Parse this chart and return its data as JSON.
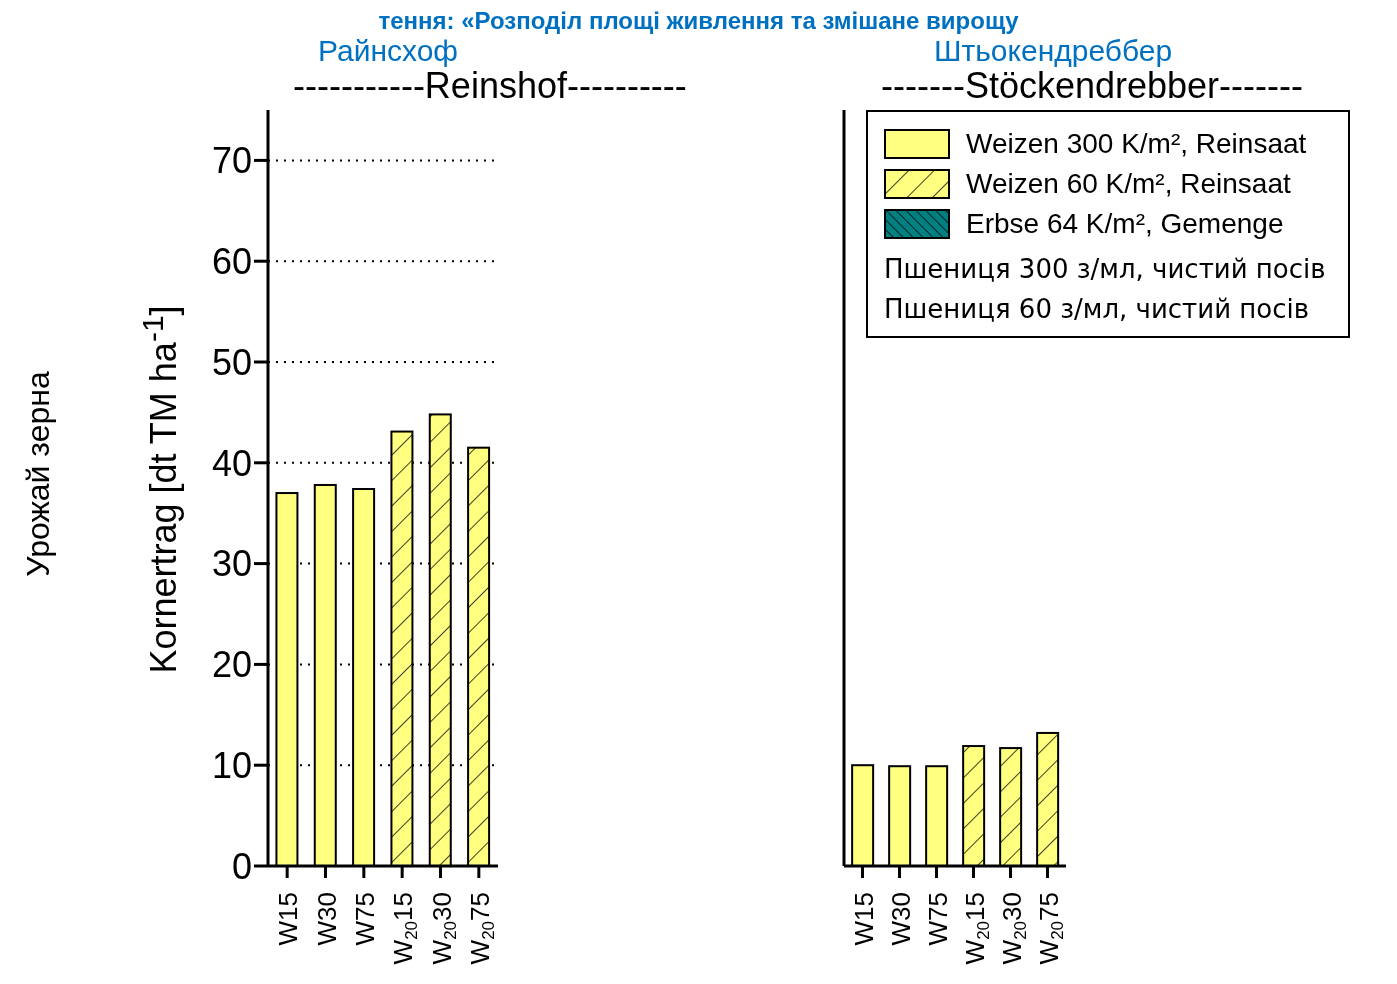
{
  "chart_data": [
    {
      "type": "bar",
      "title": "-----------Reinshof----------",
      "subtitle": "Райнсхоф",
      "ylabel": "Kornertrag [dt TM ha$^{-1}$]",
      "categories": [
        "W15",
        "W30",
        "W75",
        "W$_{20}$15",
        "W$_{20}$30",
        "W$_{20}$75"
      ],
      "series": [
        {
          "color": "#ffff80",
          "values": [
            37.0,
            37.8,
            37.4,
            null,
            null,
            null
          ]
        },
        {
          "color": "#ffff80",
          "values": [
            null,
            null,
            null,
            43.1,
            44.8,
            41.5
          ]
        }
      ],
      "stacked": true,
      "ylim": [
        0,
        75
      ],
      "yticks": [
        0,
        10,
        20,
        30,
        40,
        50,
        60,
        70
      ],
      "grid": "y",
      "legend": false,
      "annotations": [
        "тення: «Розподіл площі живлення та змішане вирощу",
        "Урожай зерна"
      ]
    },
    {
      "type": "bar",
      "title": "-------Stöckendrebber-------",
      "subtitle": "Штьокендреббер",
      "categories": [
        "W15",
        "W30",
        "W75",
        "W$_{20}$15",
        "W$_{20}$30",
        "W$_{20}$75"
      ],
      "series": [
        {
          "name": "Weizen 300 K/m², Reinsaat",
          "color": "#ffff80",
          "values": [
            10.0,
            9.9,
            9.9,
            null,
            null,
            null
          ]
        },
        {
          "name": "Weizen 60 K/m², Reinsaat",
          "color": "#ffff80",
          "values": [
            null,
            null,
            null,
            11.9,
            11.7,
            13.2
          ]
        },
        {
          "name": "Erbse 64 K/m², Gemenge",
          "color": "#008080",
          "values": [
            null,
            null,
            null,
            null,
            null,
            null
          ]
        }
      ],
      "stacked": true,
      "ylim": [
        0,
        75
      ],
      "yticks": [
        0,
        10,
        20,
        30,
        40,
        50,
        60,
        70
      ],
      "grid": "y",
      "legend": "top right",
      "tick_labels": "x",
      "annotations": [
        "Пшениця 300 з/мл, чистий посів",
        "Пшениця 60 з/мл, чистий посів"
      ]
    }
  ]
}
